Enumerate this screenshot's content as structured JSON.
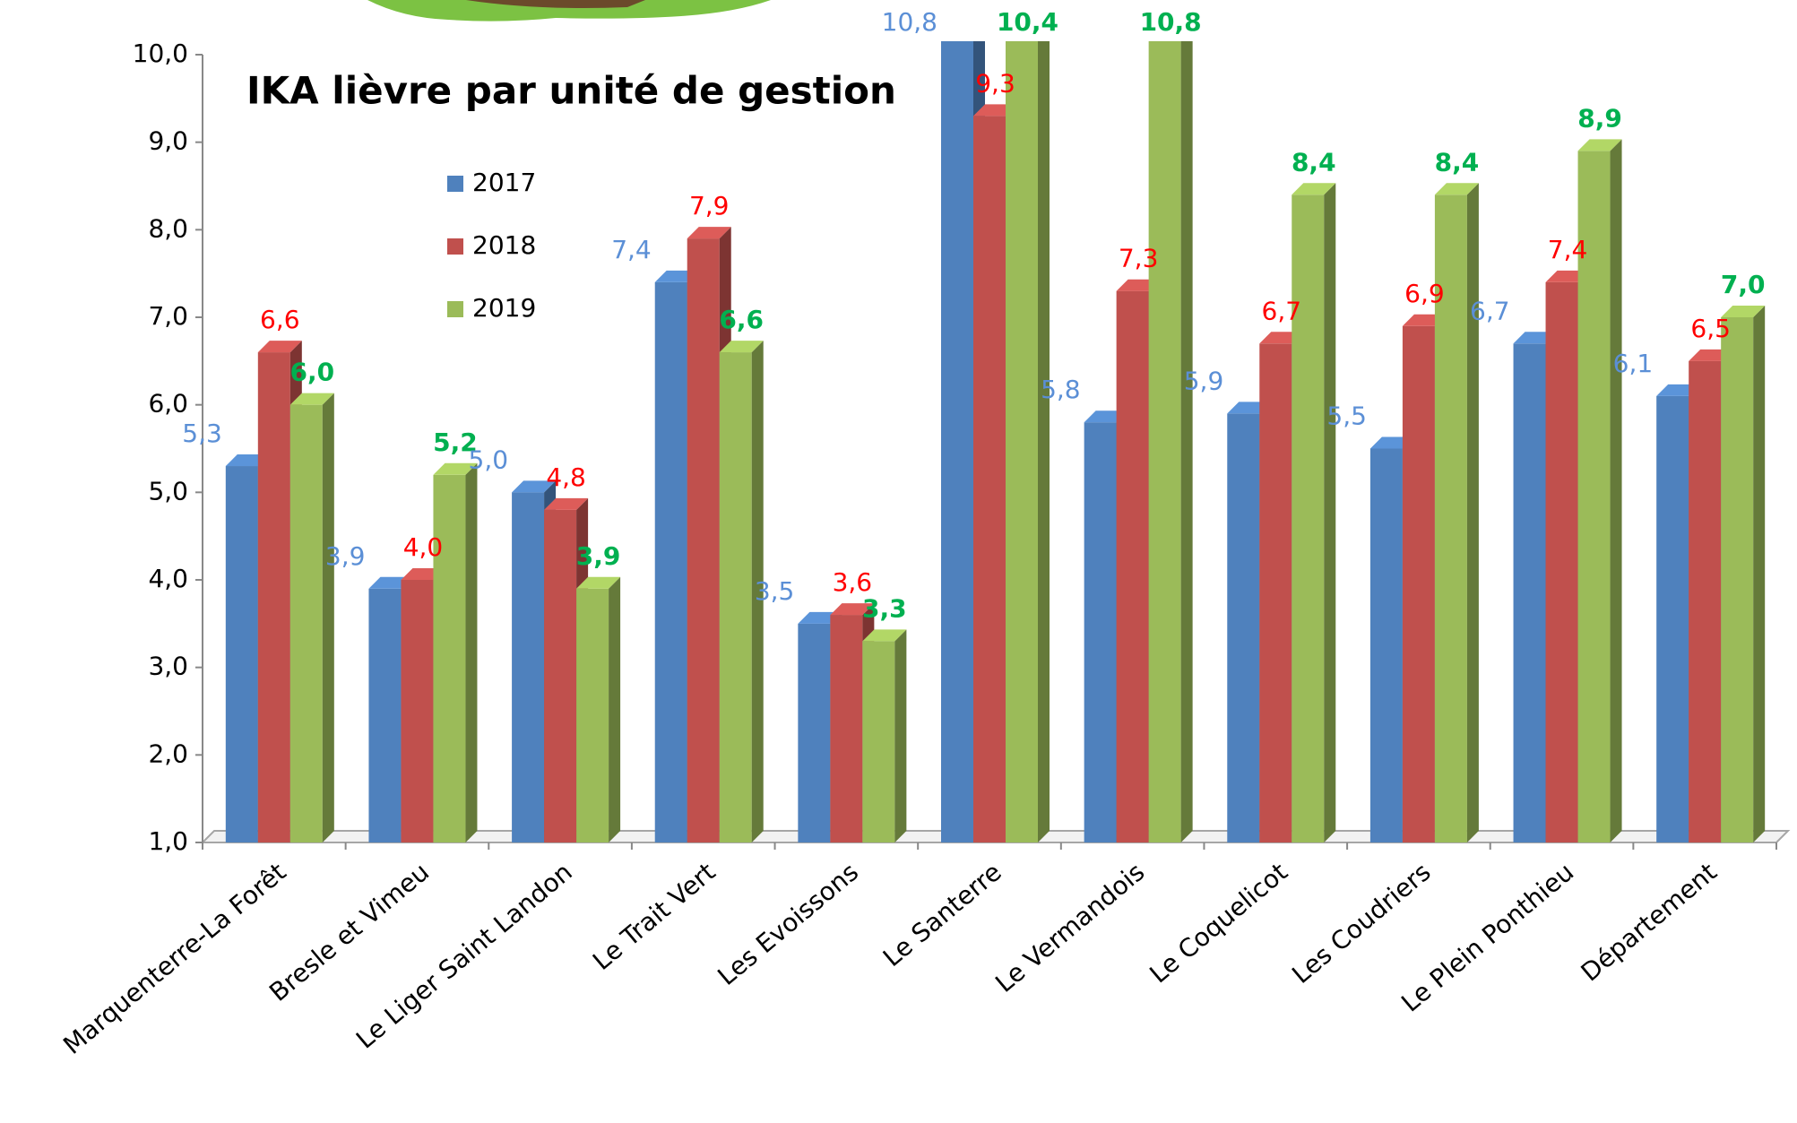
{
  "chart_data": {
    "type": "bar3d",
    "title": "IKA lièvre par unité de gestion",
    "categories": [
      "Marquenterre-La Forêt",
      "Bresle et Vimeu",
      "Le Liger Saint Landon",
      "Le Trait Vert",
      "Les Evoissons",
      "Le Santerre",
      "Le Vermandois",
      "Le Coquelicot",
      "Les Coudriers",
      "Le Plein Ponthieu",
      "Département"
    ],
    "series": [
      {
        "name": "2017",
        "color": "#4f81bd",
        "label_color": "#5b8fd6",
        "label_bold": false,
        "values": [
          5.3,
          3.9,
          5.0,
          7.4,
          3.5,
          10.8,
          5.8,
          5.9,
          5.5,
          6.7,
          6.1
        ],
        "value_labels": [
          "5,3",
          "3,9",
          "5,0",
          "7,4",
          "3,5",
          "10,8",
          "5,8",
          "5,9",
          "5,5",
          "6,7",
          "6,1"
        ]
      },
      {
        "name": "2018",
        "color": "#c0504d",
        "label_color": "#ff0000",
        "label_bold": false,
        "values": [
          6.6,
          4.0,
          4.8,
          7.9,
          3.6,
          9.3,
          7.3,
          6.7,
          6.9,
          7.4,
          6.5
        ],
        "value_labels": [
          "6,6",
          "4,0",
          "4,8",
          "7,9",
          "3,6",
          "9,3",
          "7,3",
          "6,7",
          "6,9",
          "7,4",
          "6,5"
        ]
      },
      {
        "name": "2019",
        "color": "#9bbb59",
        "label_color": "#00b050",
        "label_bold": true,
        "values": [
          6.0,
          5.2,
          3.9,
          6.6,
          3.3,
          10.4,
          10.8,
          8.4,
          8.4,
          8.9,
          7.0
        ],
        "value_labels": [
          "6,0",
          "5,2",
          "3,9",
          "6,6",
          "3,3",
          "10,4",
          "10,8",
          "8,4",
          "8,4",
          "8,9",
          "7,0"
        ]
      }
    ],
    "ylim": [
      1,
      10
    ],
    "yticks": [
      {
        "value": 1,
        "label": "1,0"
      },
      {
        "value": 2,
        "label": "2,0"
      },
      {
        "value": 3,
        "label": "3,0"
      },
      {
        "value": 4,
        "label": "4,0"
      },
      {
        "value": 5,
        "label": "5,0"
      },
      {
        "value": 6,
        "label": "6,0"
      },
      {
        "value": 7,
        "label": "7,0"
      },
      {
        "value": 8,
        "label": "8,0"
      },
      {
        "value": 9,
        "label": "9,0"
      },
      {
        "value": 10,
        "label": "10,0"
      }
    ],
    "grid": false
  }
}
